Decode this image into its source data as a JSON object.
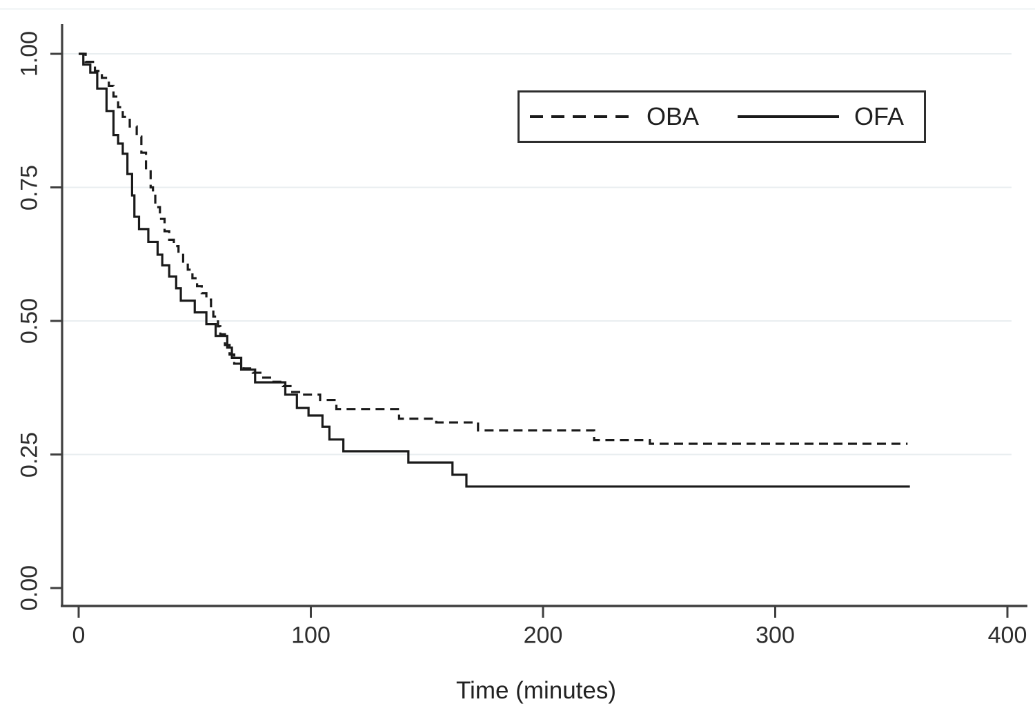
{
  "chart_data": {
    "type": "line",
    "subtype": "kaplan-meier-step-survival",
    "title": "",
    "xlabel": "Time (minutes)",
    "ylabel": "",
    "xlim": [
      0,
      400
    ],
    "ylim": [
      0.0,
      1.0
    ],
    "x_ticks": [
      0,
      100,
      200,
      300,
      400
    ],
    "x_tick_labels": [
      "0",
      "100",
      "200",
      "300",
      "400"
    ],
    "y_ticks": [
      0.0,
      0.25,
      0.5,
      0.75,
      1.0
    ],
    "y_tick_labels": [
      "0.00",
      "0.25",
      "0.50",
      "0.75",
      "1.00"
    ],
    "grid": {
      "horizontal": true,
      "vertical": false,
      "color": "#e9eef0"
    },
    "line_color": "#1a1a1a",
    "axis_color": "#3f3f3f",
    "legend": {
      "position": "top-right-inside",
      "entries": [
        {
          "label": "OBA",
          "line": "dashed"
        },
        {
          "label": "OFA",
          "line": "solid"
        }
      ]
    },
    "series": [
      {
        "name": "OBA",
        "line": "dashed",
        "points": [
          [
            0,
            1.0
          ],
          [
            3,
            0.985
          ],
          [
            7,
            0.968
          ],
          [
            10,
            0.955
          ],
          [
            13,
            0.94
          ],
          [
            15,
            0.92
          ],
          [
            17,
            0.9
          ],
          [
            19,
            0.882
          ],
          [
            22,
            0.864
          ],
          [
            25,
            0.845
          ],
          [
            27,
            0.815
          ],
          [
            29,
            0.78
          ],
          [
            31,
            0.75
          ],
          [
            32,
            0.737
          ],
          [
            33,
            0.713
          ],
          [
            35,
            0.691
          ],
          [
            37,
            0.668
          ],
          [
            39,
            0.652
          ],
          [
            41,
            0.64
          ],
          [
            43,
            0.627
          ],
          [
            45,
            0.611
          ],
          [
            47,
            0.596
          ],
          [
            49,
            0.58
          ],
          [
            51,
            0.565
          ],
          [
            53,
            0.552
          ],
          [
            55,
            0.54
          ],
          [
            57,
            0.525
          ],
          [
            58,
            0.508
          ],
          [
            60,
            0.49
          ],
          [
            61,
            0.475
          ],
          [
            63,
            0.455
          ],
          [
            65,
            0.437
          ],
          [
            67,
            0.42
          ],
          [
            71,
            0.411
          ],
          [
            75,
            0.403
          ],
          [
            79,
            0.394
          ],
          [
            83,
            0.386
          ],
          [
            88,
            0.378
          ],
          [
            92,
            0.367
          ],
          [
            96,
            0.362
          ],
          [
            104,
            0.352
          ],
          [
            111,
            0.335
          ],
          [
            138,
            0.317
          ],
          [
            154,
            0.31
          ],
          [
            172,
            0.295
          ],
          [
            222,
            0.277
          ],
          [
            246,
            0.27
          ],
          [
            357,
            0.27
          ]
        ]
      },
      {
        "name": "OFA",
        "line": "solid",
        "points": [
          [
            0,
            1.0
          ],
          [
            2,
            0.98
          ],
          [
            5,
            0.965
          ],
          [
            8,
            0.935
          ],
          [
            12,
            0.893
          ],
          [
            15,
            0.848
          ],
          [
            17,
            0.832
          ],
          [
            19,
            0.813
          ],
          [
            21,
            0.775
          ],
          [
            23,
            0.735
          ],
          [
            24,
            0.695
          ],
          [
            26,
            0.672
          ],
          [
            30,
            0.648
          ],
          [
            34,
            0.624
          ],
          [
            36,
            0.604
          ],
          [
            39,
            0.583
          ],
          [
            42,
            0.561
          ],
          [
            44,
            0.538
          ],
          [
            50,
            0.516
          ],
          [
            55,
            0.494
          ],
          [
            59,
            0.472
          ],
          [
            64,
            0.45
          ],
          [
            66,
            0.431
          ],
          [
            70,
            0.409
          ],
          [
            76,
            0.385
          ],
          [
            89,
            0.362
          ],
          [
            94,
            0.337
          ],
          [
            99,
            0.323
          ],
          [
            105,
            0.302
          ],
          [
            108,
            0.278
          ],
          [
            114,
            0.256
          ],
          [
            142,
            0.235
          ],
          [
            161,
            0.212
          ],
          [
            167,
            0.19
          ],
          [
            358,
            0.19
          ]
        ]
      }
    ]
  }
}
